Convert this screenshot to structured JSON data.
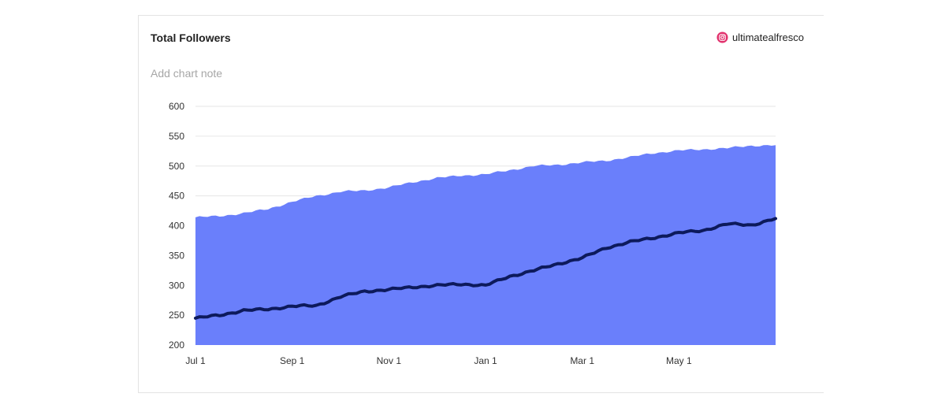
{
  "card": {
    "title": "Total Followers",
    "account_name": "ultimatealfresco",
    "account_icon": "instagram-icon",
    "note_placeholder": "Add chart note"
  },
  "colors": {
    "area_fill": "#6a7ffb",
    "line": "#0d1a5c",
    "grid": "#e6e6e6",
    "instagram_ring": "#e1306c"
  },
  "chart_data": {
    "type": "area",
    "title": "Total Followers",
    "xlabel": "",
    "ylabel": "",
    "ylim": [
      200,
      600
    ],
    "yticks": [
      200,
      250,
      300,
      350,
      400,
      450,
      500,
      550,
      600
    ],
    "xticks": [
      "Jul 1",
      "Sep 1",
      "Nov 1",
      "Jan 1",
      "Mar 1",
      "May 1"
    ],
    "grid": true,
    "x": [
      "Jul 1",
      "Jul 15",
      "Aug 1",
      "Aug 15",
      "Sep 1",
      "Sep 15",
      "Oct 1",
      "Oct 15",
      "Nov 1",
      "Nov 15",
      "Dec 1",
      "Dec 15",
      "Jan 1",
      "Jan 15",
      "Feb 1",
      "Feb 15",
      "Mar 1",
      "Mar 15",
      "Apr 1",
      "Apr 15",
      "May 1",
      "May 15",
      "Jun 1",
      "Jun 15",
      "Jun 30"
    ],
    "series": [
      {
        "name": "",
        "style": "area",
        "values": [
          414,
          416,
          421,
          428,
          440,
          450,
          457,
          459,
          464,
          473,
          480,
          484,
          486,
          493,
          500,
          502,
          506,
          509,
          515,
          522,
          526,
          528,
          530,
          534,
          535
        ]
      },
      {
        "name": "",
        "style": "line",
        "values": [
          245,
          250,
          258,
          260,
          265,
          266,
          281,
          290,
          293,
          297,
          300,
          302,
          300,
          315,
          325,
          336,
          346,
          363,
          373,
          380,
          388,
          392,
          403,
          401,
          412
        ]
      }
    ]
  }
}
